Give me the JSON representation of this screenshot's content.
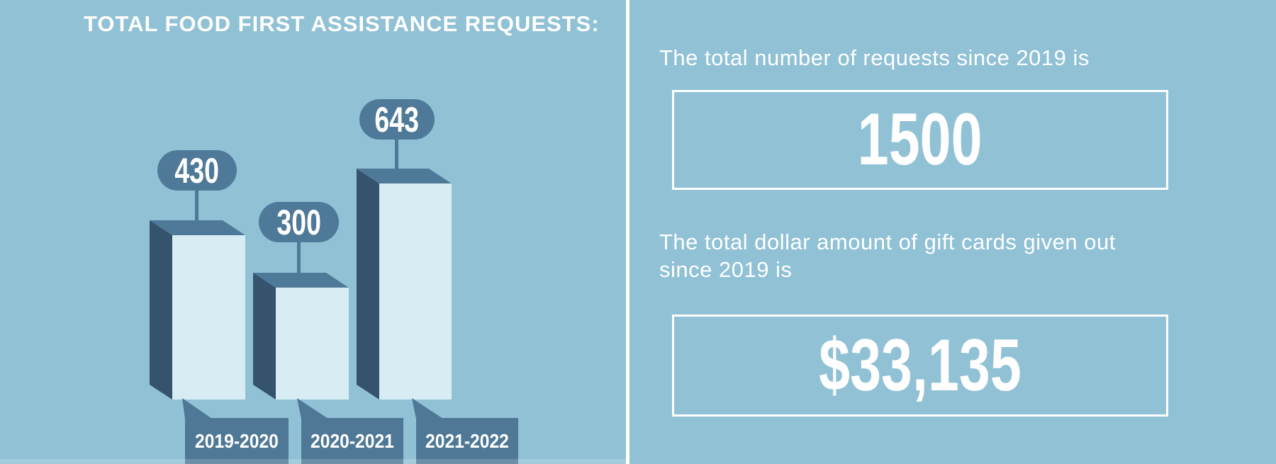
{
  "chart": {
    "title": "TOTAL FOOD FIRST ASSISTANCE REQUESTS:",
    "bars": [
      {
        "value": "430",
        "label": "2019-2020"
      },
      {
        "value": "300",
        "label": "2020-2021"
      },
      {
        "value": "643",
        "label": "2021-2022"
      }
    ]
  },
  "stats": {
    "requests_caption": "The total number of requests since 2019 is",
    "requests_value": "1500",
    "giftcards_caption": "The total dollar amount of gift cards given out since 2019 is",
    "giftcards_value": "$33,135"
  },
  "colors": {
    "background": "#90c1d5",
    "bar_front": "#d8ecf3",
    "bar_side_dark": "#35536c",
    "bar_top_mid": "#4f7998",
    "label_box": "#4e7896",
    "text": "#ffffff"
  },
  "chart_data": {
    "type": "bar",
    "title": "TOTAL FOOD FIRST ASSISTANCE REQUESTS:",
    "categories": [
      "2019-2020",
      "2020-2021",
      "2021-2022"
    ],
    "values": [
      430,
      300,
      643
    ],
    "xlabel": "",
    "ylabel": "",
    "legend": false,
    "grid": false,
    "style": "3d-extruded infographic bars with value pills above and year tags below"
  }
}
